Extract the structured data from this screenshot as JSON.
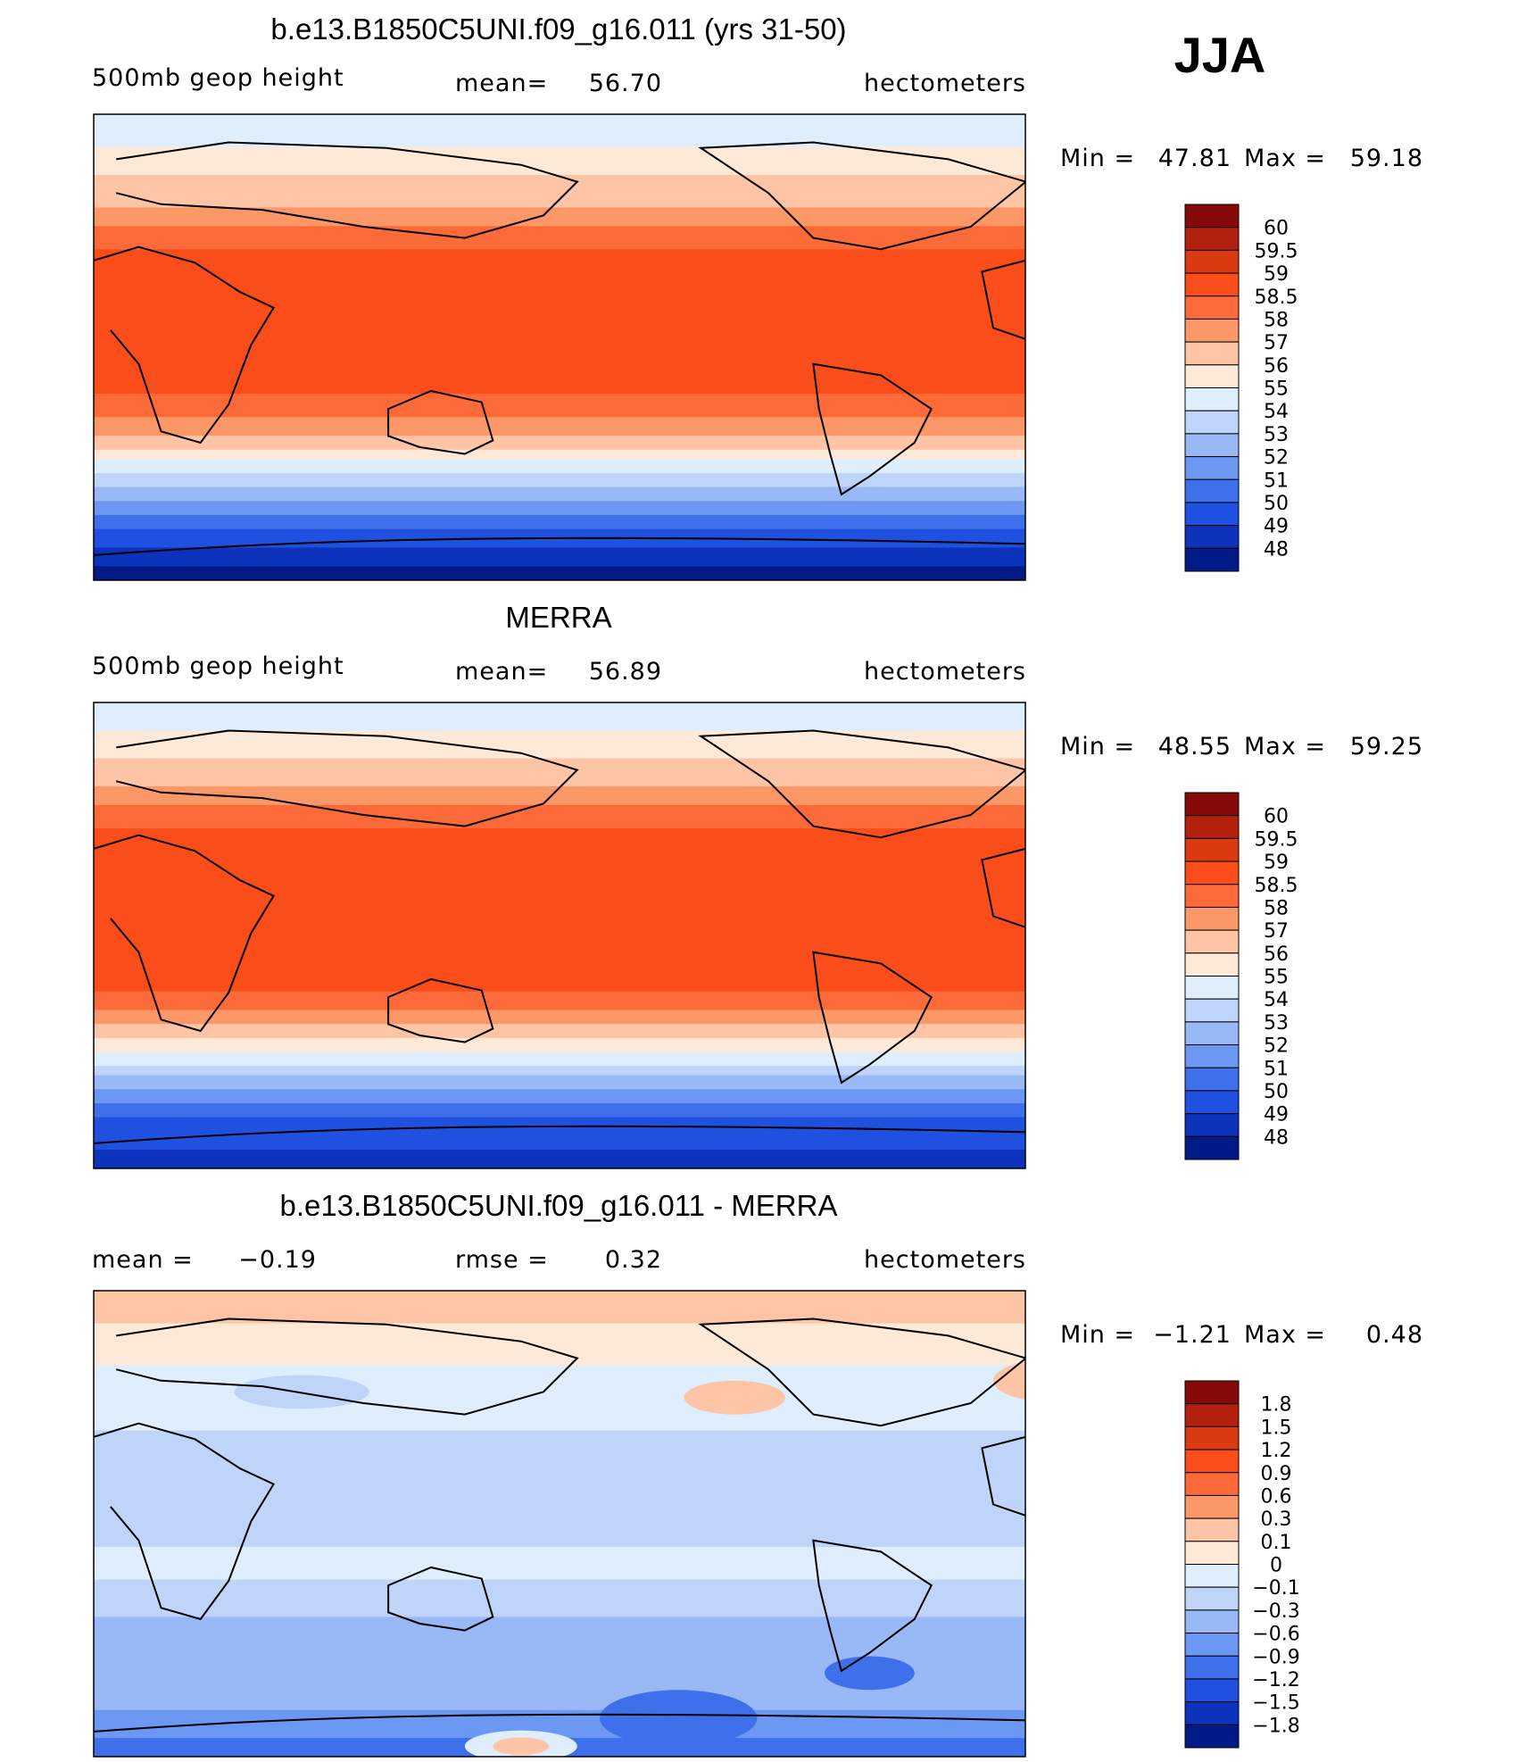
{
  "season": "JJA",
  "palette": [
    "#870a0a",
    "#b3200d",
    "#d93a10",
    "#fa4d1a",
    "#fd6a3a",
    "#fc9768",
    "#fdc4a5",
    "#fee9d9",
    "#dfeefc",
    "#bed4f9",
    "#98b8f6",
    "#6c97f2",
    "#3f70ec",
    "#1f50e0",
    "#0d32bb",
    "#001b88"
  ],
  "panels": [
    {
      "title": "b.e13.B1850C5UNI.f09_g16.011 (yrs 31-50)",
      "left_text": "500mb  geop  height",
      "mid_label": "mean=",
      "mid_value": "56.70",
      "right_text": "hectometers",
      "min_label": "Min =",
      "min": "47.81",
      "max_label": "Max =",
      "max": "59.18",
      "colorbar_labels": [
        "60",
        "59.5",
        "59",
        "58.5",
        "58",
        "57",
        "56",
        "55",
        "54",
        "53",
        "52",
        "51",
        "50",
        "49",
        "48"
      ]
    },
    {
      "title": "MERRA",
      "left_text": "500mb  geop  height",
      "mid_label": "mean=",
      "mid_value": "56.89",
      "right_text": "hectometers",
      "min_label": "Min =",
      "min": "48.55",
      "max_label": "Max =",
      "max": "59.25",
      "colorbar_labels": [
        "60",
        "59.5",
        "59",
        "58.5",
        "58",
        "57",
        "56",
        "55",
        "54",
        "53",
        "52",
        "51",
        "50",
        "49",
        "48"
      ]
    },
    {
      "title": "b.e13.B1850C5UNI.f09_g16.011 - MERRA",
      "left_label": "mean =",
      "left_value": "−0.19",
      "mid_label": "rmse =",
      "mid_value": "0.32",
      "right_text": "hectometers",
      "min_label": "Min =",
      "min": "−1.21",
      "max_label": "Max =",
      "max": "0.48",
      "colorbar_labels": [
        "1.8",
        "1.5",
        "1.2",
        "0.9",
        "0.6",
        "0.3",
        "0.1",
        "0",
        "−0.1",
        "−0.3",
        "−0.6",
        "−0.9",
        "−1.2",
        "−1.5",
        "−1.8"
      ]
    }
  ]
}
